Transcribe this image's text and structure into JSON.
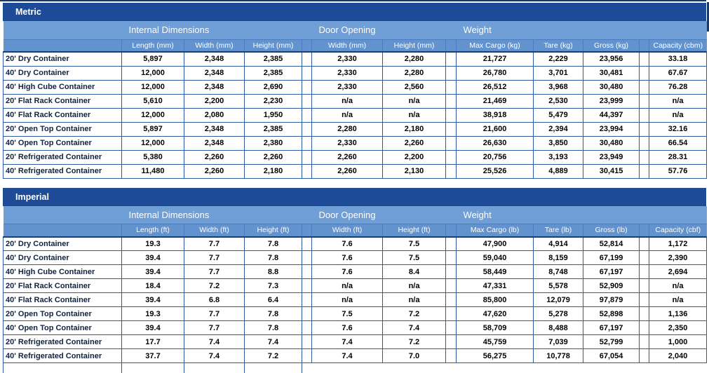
{
  "colors": {
    "title_bar_bg": "#1d4b97",
    "group_band_bg": "#6f9fd6",
    "column_band_bg": "#6393ce",
    "band_divider": "#4a7cbf",
    "grid_line": "#2d5ba3",
    "header_underline": "#1f3e70",
    "frame_line": "#1a3a66",
    "header_text": "#ffffff",
    "row_label_text": "#10233f",
    "cell_text": "#000000"
  },
  "tables": [
    {
      "title": "Metric",
      "groups": [
        {
          "label": "Internal Dimensions"
        },
        {
          "label": "Door Opening"
        },
        {
          "label": "Weight"
        },
        {
          "label": ""
        }
      ],
      "columns": [
        "Length (mm)",
        "Width (mm)",
        "Height (mm)",
        "Width (mm)",
        "Height (mm)",
        "Max Cargo (kg)",
        "Tare (kg)",
        "Gross (kg)",
        "Capacity (cbm)"
      ],
      "rows": [
        {
          "label": "20' Dry Container",
          "values": [
            "5,897",
            "2,348",
            "2,385",
            "2,330",
            "2,280",
            "21,727",
            "2,229",
            "23,956",
            "33.18"
          ]
        },
        {
          "label": "40' Dry Container",
          "values": [
            "12,000",
            "2,348",
            "2,385",
            "2,330",
            "2,280",
            "26,780",
            "3,701",
            "30,481",
            "67.67"
          ]
        },
        {
          "label": "40' High Cube Container",
          "values": [
            "12,000",
            "2,348",
            "2,690",
            "2,330",
            "2,560",
            "26,512",
            "3,968",
            "30,480",
            "76.28"
          ]
        },
        {
          "label": "20' Flat Rack Container",
          "values": [
            "5,610",
            "2,200",
            "2,230",
            "n/a",
            "n/a",
            "21,469",
            "2,530",
            "23,999",
            "n/a"
          ]
        },
        {
          "label": "40' Flat Rack Container",
          "values": [
            "12,000",
            "2,080",
            "1,950",
            "n/a",
            "n/a",
            "38,918",
            "5,479",
            "44,397",
            "n/a"
          ]
        },
        {
          "label": "20' Open Top Container",
          "values": [
            "5,897",
            "2,348",
            "2,385",
            "2,280",
            "2,180",
            "21,600",
            "2,394",
            "23,994",
            "32.16"
          ]
        },
        {
          "label": "40' Open Top Container",
          "values": [
            "12,000",
            "2,348",
            "2,380",
            "2,330",
            "2,260",
            "26,630",
            "3,850",
            "30,480",
            "66.54"
          ]
        },
        {
          "label": "20' Refrigerated Container",
          "values": [
            "5,380",
            "2,260",
            "2,260",
            "2,260",
            "2,200",
            "20,756",
            "3,193",
            "23,949",
            "28.31"
          ]
        },
        {
          "label": "40' Refrigerated Container",
          "values": [
            "11,480",
            "2,260",
            "2,180",
            "2,260",
            "2,130",
            "25,526",
            "4,889",
            "30,415",
            "57.76"
          ]
        }
      ]
    },
    {
      "title": "Imperial",
      "groups": [
        {
          "label": "Internal Dimensions"
        },
        {
          "label": "Door Opening"
        },
        {
          "label": "Weight"
        },
        {
          "label": ""
        }
      ],
      "columns": [
        "Length (ft)",
        "Width (ft)",
        "Height (ft)",
        "Width (ft)",
        "Height (ft)",
        "Max Cargo (lb)",
        "Tare (lb)",
        "Gross (lb)",
        "Capacity (cbf)"
      ],
      "rows": [
        {
          "label": "20' Dry Container",
          "values": [
            "19.3",
            "7.7",
            "7.8",
            "7.6",
            "7.5",
            "47,900",
            "4,914",
            "52,814",
            "1,172"
          ]
        },
        {
          "label": "40' Dry Container",
          "values": [
            "39.4",
            "7.7",
            "7.8",
            "7.6",
            "7.5",
            "59,040",
            "8,159",
            "67,199",
            "2,390"
          ]
        },
        {
          "label": "40' High Cube Container",
          "values": [
            "39.4",
            "7.7",
            "8.8",
            "7.6",
            "8.4",
            "58,449",
            "8,748",
            "67,197",
            "2,694"
          ]
        },
        {
          "label": "20' Flat Rack Container",
          "values": [
            "18.4",
            "7.2",
            "7.3",
            "n/a",
            "n/a",
            "47,331",
            "5,578",
            "52,909",
            "n/a"
          ]
        },
        {
          "label": "40' Flat Rack Container",
          "values": [
            "39.4",
            "6.8",
            "6.4",
            "n/a",
            "n/a",
            "85,800",
            "12,079",
            "97,879",
            "n/a"
          ]
        },
        {
          "label": "20' Open Top Container",
          "values": [
            "19.3",
            "7.7",
            "7.8",
            "7.5",
            "7.2",
            "47,620",
            "5,278",
            "52,898",
            "1,136"
          ]
        },
        {
          "label": "40' Open Top Container",
          "values": [
            "39.4",
            "7.7",
            "7.8",
            "7.6",
            "7.4",
            "58,709",
            "8,488",
            "67,197",
            "2,350"
          ]
        },
        {
          "label": "20' Refrigerated Container",
          "values": [
            "17.7",
            "7.4",
            "7.4",
            "7.4",
            "7.2",
            "45,759",
            "7,039",
            "52,799",
            "1,000"
          ]
        },
        {
          "label": "40' Refrigerated Container",
          "values": [
            "37.7",
            "7.4",
            "7.2",
            "7.4",
            "7.0",
            "56,275",
            "10,778",
            "67,054",
            "2,040"
          ]
        }
      ]
    }
  ]
}
